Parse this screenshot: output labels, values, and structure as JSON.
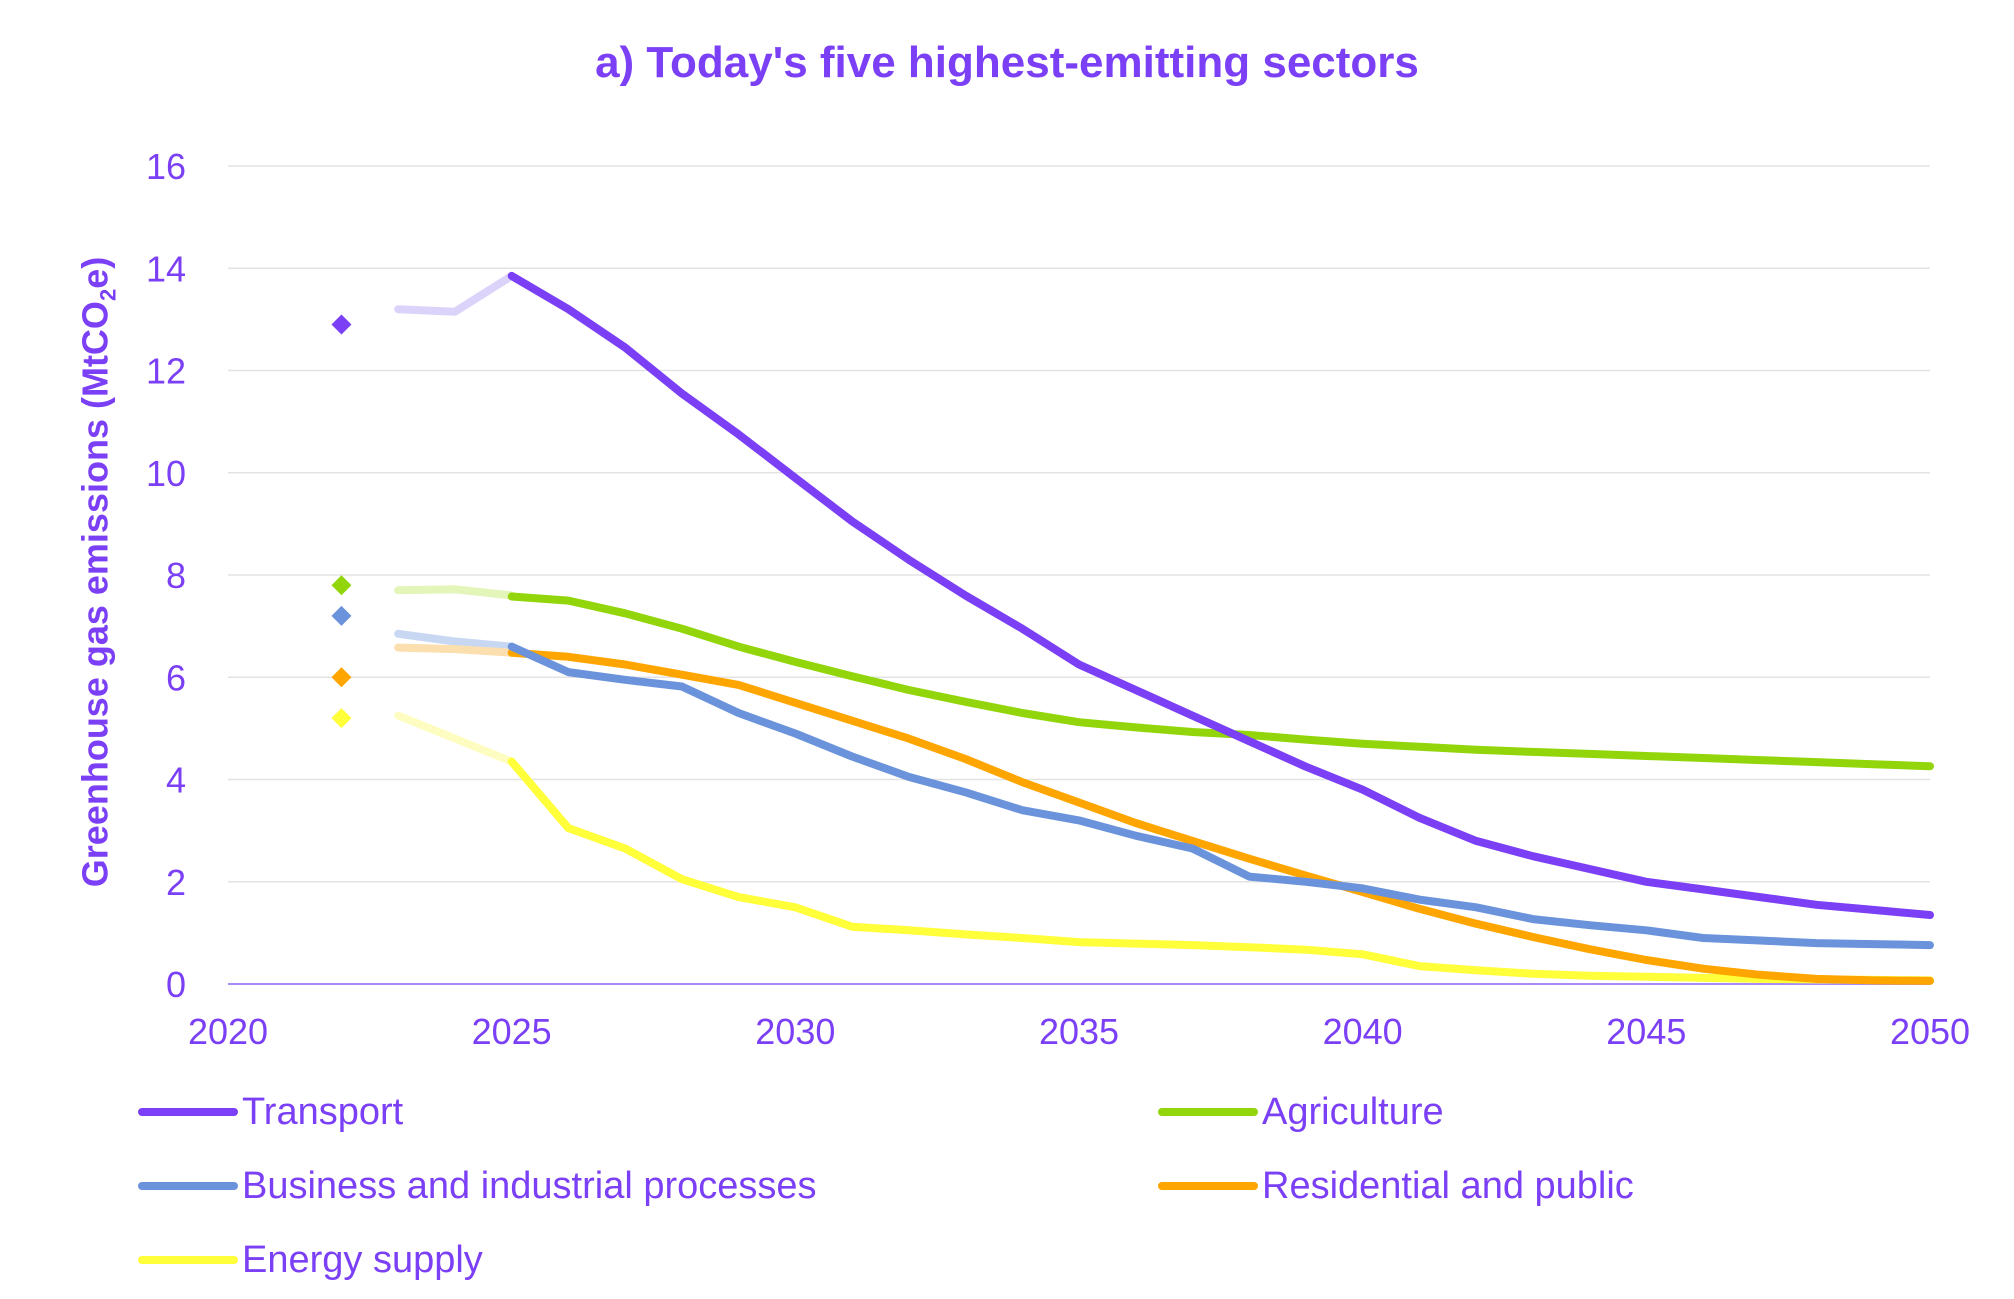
{
  "chart_data": {
    "type": "line",
    "title": "a) Today's five highest-emitting sectors",
    "ylabel_prefix": "Greenhouse gas emissions (MtCO",
    "ylabel_sub": "2",
    "ylabel_suffix": "e)",
    "xlabel": "",
    "xlim": [
      2020,
      2050
    ],
    "ylim": [
      0,
      16
    ],
    "xticks": [
      2020,
      2025,
      2030,
      2035,
      2040,
      2045,
      2050
    ],
    "yticks": [
      0,
      2,
      4,
      6,
      8,
      10,
      12,
      14,
      16
    ],
    "grid": true,
    "text_color": "#7B3FF5",
    "legend_position": "bottom",
    "series": [
      {
        "name": "Transport",
        "color": "#7B3FF5",
        "light_color": "#DCD3FB",
        "marker": {
          "x": 2022,
          "y": 12.9
        },
        "history": {
          "x": [
            2023,
            2024,
            2025
          ],
          "y": [
            13.2,
            13.15,
            13.85
          ]
        },
        "x": [
          2025,
          2026,
          2027,
          2028,
          2029,
          2030,
          2031,
          2032,
          2033,
          2034,
          2035,
          2036,
          2037,
          2038,
          2039,
          2040,
          2041,
          2042,
          2043,
          2044,
          2045,
          2046,
          2047,
          2048,
          2049,
          2050
        ],
        "y": [
          13.85,
          13.2,
          12.45,
          11.55,
          10.75,
          9.9,
          9.05,
          8.3,
          7.6,
          6.95,
          6.25,
          5.75,
          5.25,
          4.75,
          4.25,
          3.8,
          3.25,
          2.8,
          2.5,
          2.25,
          2.0,
          1.85,
          1.7,
          1.55,
          1.45,
          1.35
        ]
      },
      {
        "name": "Agriculture",
        "color": "#92D50A",
        "light_color": "#E3F5B8",
        "marker": {
          "x": 2022,
          "y": 7.8
        },
        "history": {
          "x": [
            2023,
            2024,
            2025
          ],
          "y": [
            7.7,
            7.72,
            7.6
          ]
        },
        "x": [
          2025,
          2026,
          2027,
          2028,
          2029,
          2030,
          2031,
          2032,
          2033,
          2034,
          2035,
          2036,
          2037,
          2038,
          2039,
          2040,
          2041,
          2042,
          2043,
          2044,
          2045,
          2046,
          2047,
          2048,
          2049,
          2050
        ],
        "y": [
          7.58,
          7.5,
          7.25,
          6.95,
          6.6,
          6.3,
          6.02,
          5.75,
          5.52,
          5.3,
          5.12,
          5.02,
          4.93,
          4.87,
          4.78,
          4.7,
          4.64,
          4.58,
          4.54,
          4.5,
          4.46,
          4.42,
          4.38,
          4.34,
          4.3,
          4.26
        ]
      },
      {
        "name": "Business and industrial processes",
        "color": "#6B93DB",
        "light_color": "#C9D8F2",
        "marker": {
          "x": 2022,
          "y": 7.2
        },
        "history": {
          "x": [
            2023,
            2024,
            2025
          ],
          "y": [
            6.85,
            6.7,
            6.6
          ]
        },
        "x": [
          2025,
          2026,
          2027,
          2028,
          2029,
          2030,
          2031,
          2032,
          2033,
          2034,
          2035,
          2036,
          2037,
          2038,
          2039,
          2040,
          2041,
          2042,
          2043,
          2044,
          2045,
          2046,
          2047,
          2048,
          2049,
          2050
        ],
        "y": [
          6.6,
          6.1,
          5.95,
          5.82,
          5.3,
          4.9,
          4.45,
          4.05,
          3.75,
          3.4,
          3.2,
          2.9,
          2.65,
          2.1,
          2.0,
          1.87,
          1.65,
          1.5,
          1.27,
          1.15,
          1.05,
          0.9,
          0.85,
          0.8,
          0.78,
          0.76
        ]
      },
      {
        "name": "Residential and public",
        "color": "#FFA500",
        "light_color": "#FCDFAF",
        "marker": {
          "x": 2022,
          "y": 6.0
        },
        "history": {
          "x": [
            2023,
            2024,
            2025
          ],
          "y": [
            6.58,
            6.55,
            6.48
          ]
        },
        "x": [
          2025,
          2026,
          2027,
          2028,
          2029,
          2030,
          2031,
          2032,
          2033,
          2034,
          2035,
          2036,
          2037,
          2038,
          2039,
          2040,
          2041,
          2042,
          2043,
          2044,
          2045,
          2046,
          2047,
          2048,
          2049,
          2050
        ],
        "y": [
          6.48,
          6.4,
          6.25,
          6.05,
          5.85,
          5.5,
          5.15,
          4.8,
          4.4,
          3.95,
          3.55,
          3.15,
          2.8,
          2.45,
          2.12,
          1.8,
          1.47,
          1.18,
          0.92,
          0.68,
          0.47,
          0.3,
          0.18,
          0.1,
          0.07,
          0.06
        ]
      },
      {
        "name": "Energy supply",
        "color": "#FFFF3A",
        "light_color": "#FDFDC2",
        "marker": {
          "x": 2022,
          "y": 5.2
        },
        "history": {
          "x": [
            2023,
            2024,
            2025
          ],
          "y": [
            5.25,
            4.8,
            4.35
          ]
        },
        "x": [
          2025,
          2026,
          2027,
          2028,
          2029,
          2030,
          2031,
          2032,
          2033,
          2034,
          2035,
          2036,
          2037,
          2038,
          2039,
          2040,
          2041,
          2042,
          2043,
          2044,
          2045,
          2046,
          2047,
          2048,
          2049,
          2050
        ],
        "y": [
          4.35,
          3.05,
          2.65,
          2.05,
          1.7,
          1.5,
          1.12,
          1.05,
          0.97,
          0.9,
          0.82,
          0.79,
          0.76,
          0.72,
          0.67,
          0.58,
          0.35,
          0.27,
          0.2,
          0.16,
          0.14,
          0.12,
          0.1,
          0.09,
          0.08,
          0.07
        ]
      }
    ]
  }
}
